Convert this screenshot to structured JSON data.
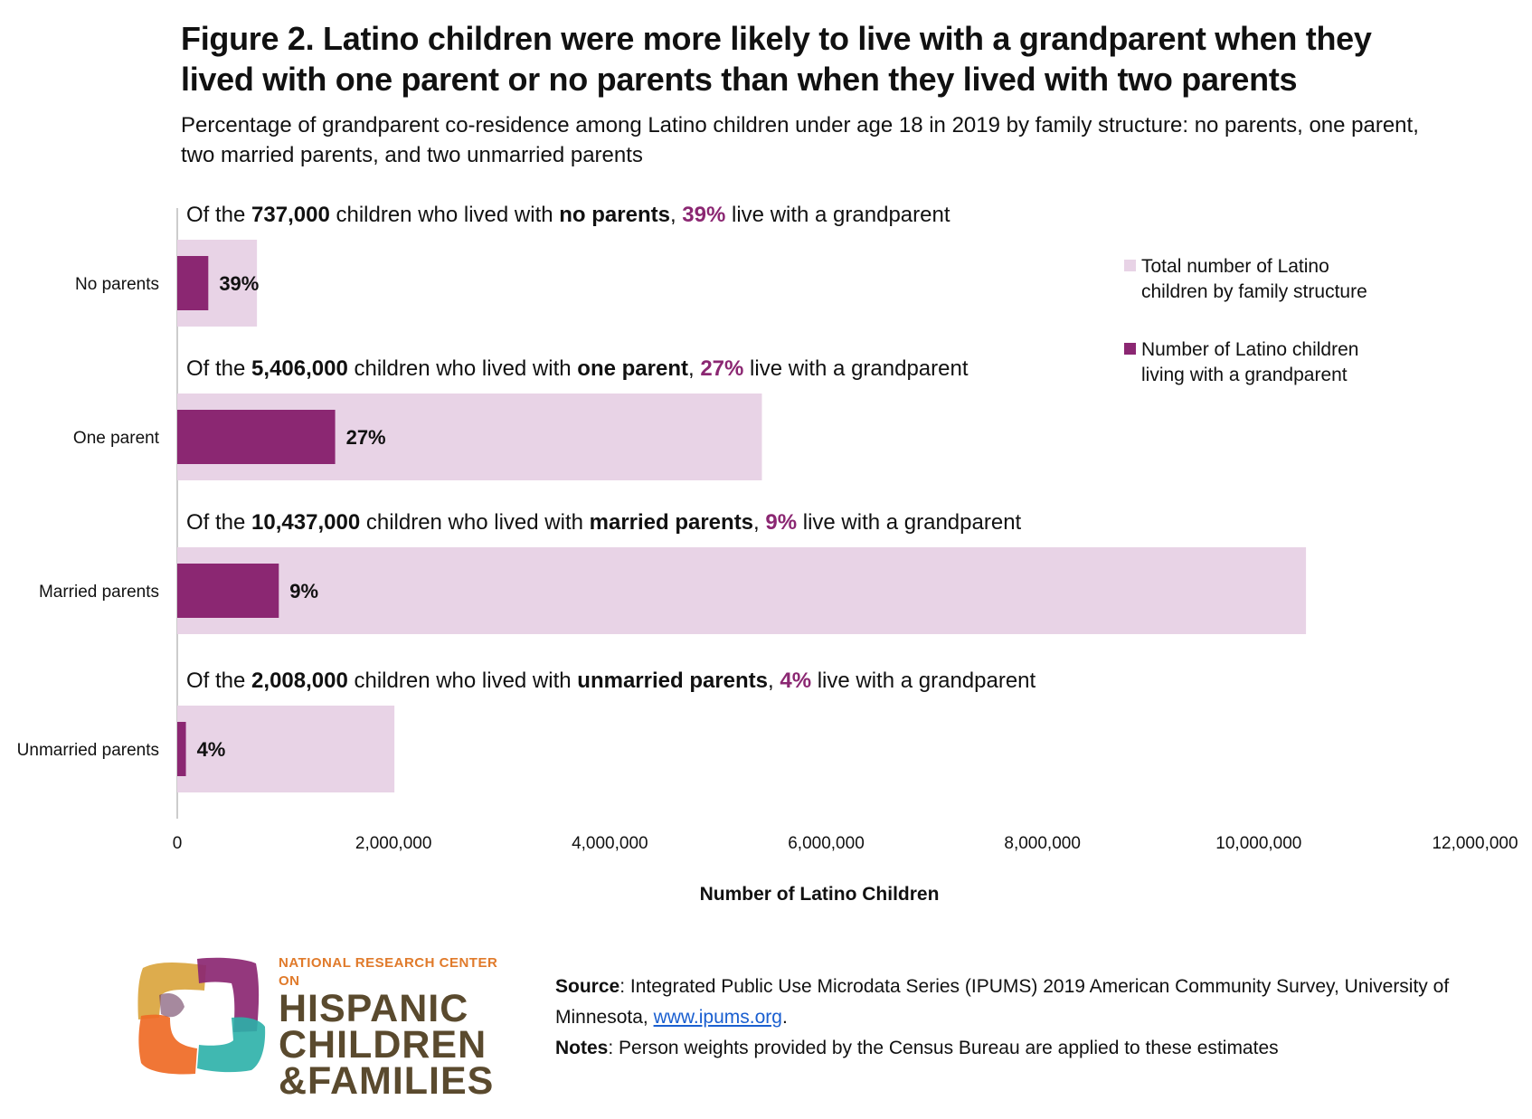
{
  "title": "Figure 2. Latino children were more likely to live with a grandparent when they lived with one parent or no parents than when they lived with two parents",
  "subtitle": "Percentage of grandparent co-residence among Latino children under age 18 in 2019 by family structure: no parents, one parent, two married parents, and two unmarried parents",
  "colors": {
    "total_bar": "#e8d3e6",
    "grandparent_bar": "#8b2772",
    "highlight_text": "#8b2772",
    "axis": "#bbbbbb"
  },
  "chart_data": {
    "type": "bar",
    "orientation": "horizontal",
    "categories": [
      "No parents",
      "One parent",
      "Married parents",
      "Unmarried parents"
    ],
    "series": [
      {
        "name": "Total number of Latino children by family structure",
        "values": [
          737000,
          5406000,
          10437000,
          2008000
        ]
      },
      {
        "name": "Number of Latino children living with a grandparent",
        "values": [
          287000,
          1460000,
          939000,
          80000
        ]
      }
    ],
    "data_labels": [
      "39%",
      "27%",
      "9%",
      "4%"
    ],
    "annotations": [
      [
        {
          "text": "Of the ",
          "bold": false
        },
        {
          "text": "737,000",
          "bold": true
        },
        {
          "text": " children who lived with ",
          "bold": false
        },
        {
          "text": "no parents",
          "bold": true
        },
        {
          "text": ", ",
          "bold": false
        },
        {
          "text": "39%",
          "bold": true,
          "highlight": true
        },
        {
          "text": " live with a grandparent",
          "bold": false
        }
      ],
      [
        {
          "text": "Of the ",
          "bold": false
        },
        {
          "text": "5,406,000",
          "bold": true
        },
        {
          "text": " children who lived with ",
          "bold": false
        },
        {
          "text": "one parent",
          "bold": true
        },
        {
          "text": ", ",
          "bold": false
        },
        {
          "text": "27%",
          "bold": true,
          "highlight": true
        },
        {
          "text": " live with a grandparent",
          "bold": false
        }
      ],
      [
        {
          "text": "Of the ",
          "bold": false
        },
        {
          "text": "10,437,000",
          "bold": true
        },
        {
          "text": "  children who lived with  ",
          "bold": false
        },
        {
          "text": "married parents",
          "bold": true
        },
        {
          "text": ", ",
          "bold": false
        },
        {
          "text": "9%",
          "bold": true,
          "highlight": true
        },
        {
          "text": " live with a grandparent",
          "bold": false
        }
      ],
      [
        {
          "text": "Of the ",
          "bold": false
        },
        {
          "text": "2,008,000",
          "bold": true
        },
        {
          "text": "  children who lived with ",
          "bold": false
        },
        {
          "text": "unmarried parents",
          "bold": true
        },
        {
          "text": ", ",
          "bold": false
        },
        {
          "text": "4%",
          "bold": true,
          "highlight": true
        },
        {
          "text": " live with a grandparent",
          "bold": false
        }
      ]
    ],
    "xlim": [
      0,
      12000000
    ],
    "xticks": [
      0,
      2000000,
      4000000,
      6000000,
      8000000,
      10000000,
      12000000
    ],
    "xtick_labels": [
      "0",
      "2,000,000",
      "4,000,000",
      "6,000,000",
      "8,000,000",
      "10,000,000",
      "12,000,000"
    ],
    "xlabel": "Number of Latino Children",
    "legend": [
      {
        "label": "Total number of Latino children by family structure",
        "lines": [
          "Total number of Latino",
          "children by family structure"
        ]
      },
      {
        "label": "Number of Latino children living with a grandparent",
        "lines": [
          "Number of Latino children",
          "living with a grandparent"
        ]
      }
    ],
    "legend_position": "right",
    "grid": false
  },
  "source": {
    "source_label": "Source",
    "source_text": ": Integrated Public Use Microdata Series (IPUMS) 2019 American Community Survey, University of Minnesota, ",
    "source_link": "www.ipums.org",
    "source_end": ".",
    "notes_label": "Notes",
    "notes_text": ": Person weights provided by the Census Bureau are applied to these estimates"
  },
  "logo": {
    "line1": "NATIONAL RESEARCH CENTER ON",
    "line2": "HISPANIC",
    "line3": "CHILDREN",
    "line4": "&FAMILIES"
  }
}
